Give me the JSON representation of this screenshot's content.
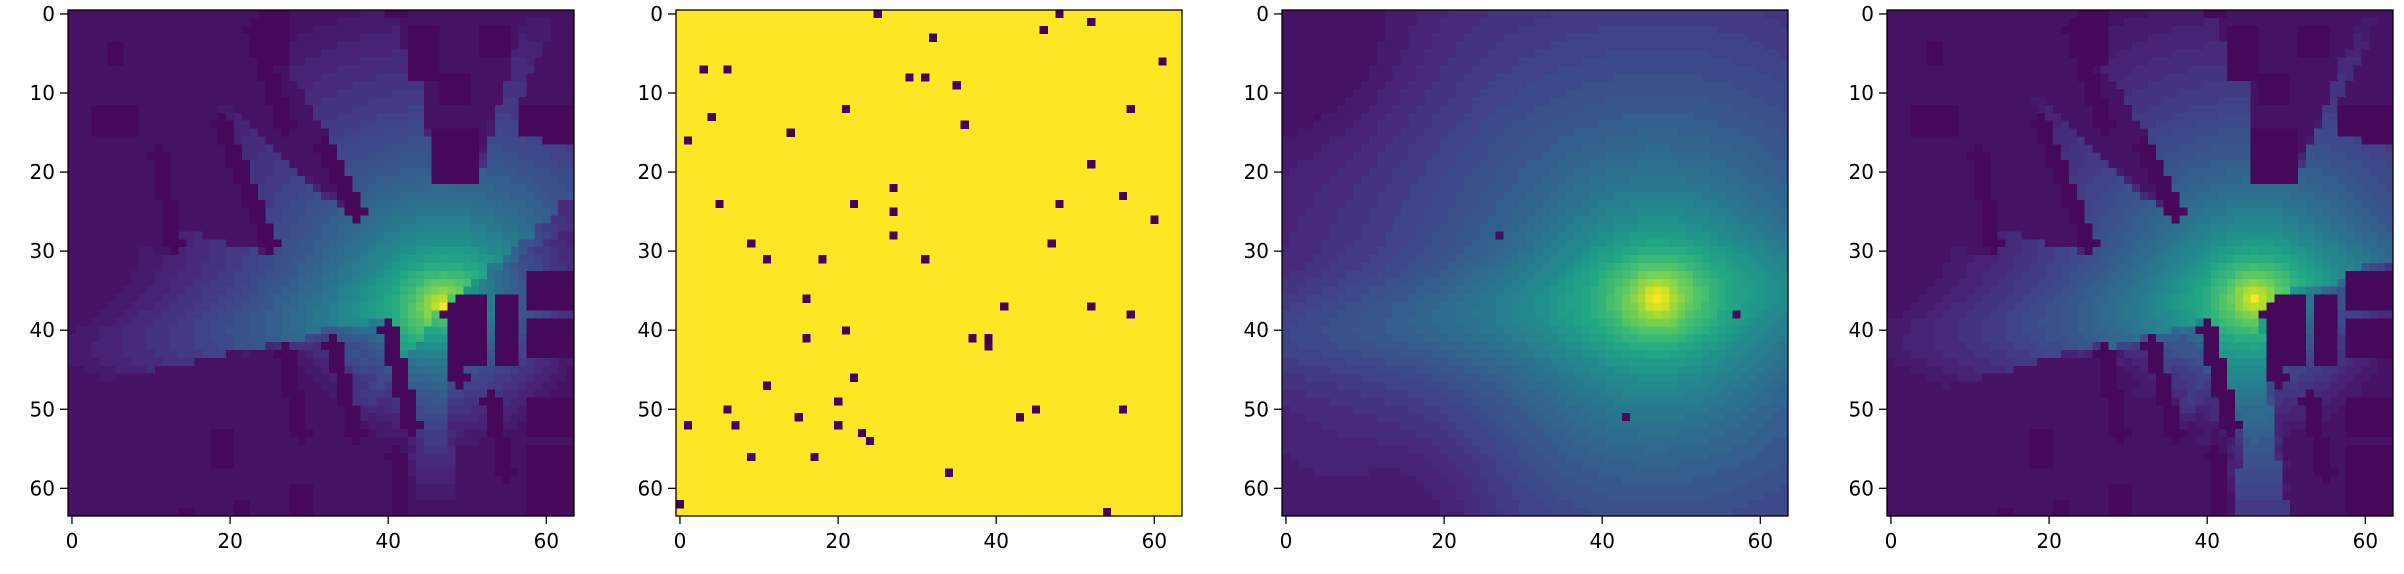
{
  "chart_data": [
    {
      "type": "heatmap",
      "panel": "signal-map",
      "title": "",
      "xlabel": "",
      "ylabel": "",
      "grid_size": 64,
      "xlim": [
        0,
        63
      ],
      "ylim": [
        63,
        0
      ],
      "x_ticks": [
        0,
        20,
        40,
        60
      ],
      "y_ticks": [
        0,
        10,
        20,
        30,
        40,
        50,
        60
      ],
      "x_tick_labels": [
        "0",
        "20",
        "40",
        "60"
      ],
      "y_tick_labels": [
        "0",
        "10",
        "20",
        "30",
        "40",
        "50",
        "60"
      ],
      "colormap": "viridis",
      "source_cell": [
        47,
        37
      ],
      "buildings": [
        {
          "x": [
            5,
            7
          ],
          "y": [
            4,
            7
          ]
        },
        {
          "x": [
            24,
            28
          ],
          "y": [
            0,
            7
          ]
        },
        {
          "x": [
            43,
            47
          ],
          "y": [
            2,
            9
          ]
        },
        {
          "x": [
            47,
            51
          ],
          "y": [
            8,
            12
          ]
        },
        {
          "x": [
            52,
            56
          ],
          "y": [
            2,
            6
          ]
        },
        {
          "x": [
            46,
            52
          ],
          "y": [
            15,
            22
          ]
        },
        {
          "x": [
            60,
            64
          ],
          "y": [
            12,
            17
          ]
        },
        {
          "x": [
            57,
            60
          ],
          "y": [
            12,
            16
          ]
        },
        {
          "x": [
            40,
            43
          ],
          "y": [
            0,
            1
          ]
        },
        {
          "x": [
            3,
            9
          ],
          "y": [
            12,
            16
          ]
        },
        {
          "x": [
            49,
            53
          ],
          "y": [
            36,
            45
          ]
        },
        {
          "x": [
            54,
            57
          ],
          "y": [
            36,
            45
          ]
        },
        {
          "x": [
            58,
            64
          ],
          "y": [
            33,
            38
          ]
        },
        {
          "x": [
            58,
            64
          ],
          "y": [
            39,
            44
          ]
        },
        {
          "x": [
            58,
            64
          ],
          "y": [
            49,
            54
          ]
        },
        {
          "x": [
            58,
            64
          ],
          "y": [
            55,
            60
          ]
        },
        {
          "x": [
            58,
            64
          ],
          "y": [
            60,
            64
          ]
        },
        {
          "x": [
            18,
            21
          ],
          "y": [
            53,
            58
          ]
        },
        {
          "x": [
            28,
            31
          ],
          "y": [
            60,
            64
          ]
        },
        {
          "x": [
            21,
            23
          ],
          "y": [
            62,
            64
          ]
        },
        {
          "x": [
            14,
            16
          ],
          "y": [
            63,
            64
          ]
        }
      ],
      "slabs": [
        {
          "p1": [
            23,
            2
          ],
          "p2": [
            27,
            14
          ]
        },
        {
          "p1": [
            19,
            14
          ],
          "p2": [
            25,
            29
          ]
        },
        {
          "p1": [
            32,
            17
          ],
          "p2": [
            36,
            25
          ]
        },
        {
          "p1": [
            11,
            18
          ],
          "p2": [
            13,
            29
          ]
        },
        {
          "p1": [
            27,
            43
          ],
          "p2": [
            29,
            53
          ]
        },
        {
          "p1": [
            33,
            42
          ],
          "p2": [
            36,
            53
          ]
        },
        {
          "p1": [
            40,
            40
          ],
          "p2": [
            43,
            52
          ]
        },
        {
          "p1": [
            48,
            38
          ],
          "p2": [
            49,
            46
          ]
        },
        {
          "p1": [
            53,
            49
          ],
          "p2": [
            55,
            58
          ]
        },
        {
          "p1": [
            41,
            56
          ],
          "p2": [
            42,
            64
          ]
        },
        {
          "p1": [
            29,
            61
          ],
          "p2": [
            30,
            64
          ]
        }
      ]
    },
    {
      "type": "heatmap",
      "panel": "sample-mask",
      "title": "",
      "xlabel": "",
      "ylabel": "",
      "grid_size": 64,
      "xlim": [
        0,
        63
      ],
      "ylim": [
        63,
        0
      ],
      "x_ticks": [
        0,
        20,
        40,
        60
      ],
      "y_ticks": [
        0,
        10,
        20,
        30,
        40,
        50,
        60
      ],
      "x_tick_labels": [
        "0",
        "20",
        "40",
        "60"
      ],
      "y_tick_labels": [
        "0",
        "10",
        "20",
        "30",
        "40",
        "50",
        "60"
      ],
      "colormap": "viridis",
      "background_value": 1,
      "sample_value": 0,
      "samples": [
        [
          25,
          0
        ],
        [
          32,
          3
        ],
        [
          48,
          0
        ],
        [
          46,
          2
        ],
        [
          52,
          1
        ],
        [
          61,
          6
        ],
        [
          3,
          7
        ],
        [
          6,
          7
        ],
        [
          29,
          8
        ],
        [
          31,
          8
        ],
        [
          35,
          9
        ],
        [
          4,
          13
        ],
        [
          21,
          12
        ],
        [
          57,
          12
        ],
        [
          36,
          14
        ],
        [
          14,
          15
        ],
        [
          1,
          16
        ],
        [
          52,
          19
        ],
        [
          27,
          22
        ],
        [
          56,
          23
        ],
        [
          5,
          24
        ],
        [
          22,
          24
        ],
        [
          48,
          24
        ],
        [
          27,
          25
        ],
        [
          60,
          26
        ],
        [
          27,
          28
        ],
        [
          9,
          29
        ],
        [
          47,
          29
        ],
        [
          11,
          31
        ],
        [
          18,
          31
        ],
        [
          31,
          31
        ],
        [
          16,
          36
        ],
        [
          41,
          37
        ],
        [
          52,
          37
        ],
        [
          57,
          38
        ],
        [
          21,
          40
        ],
        [
          16,
          41
        ],
        [
          37,
          41
        ],
        [
          39,
          41
        ],
        [
          39,
          42
        ],
        [
          22,
          46
        ],
        [
          11,
          47
        ],
        [
          20,
          49
        ],
        [
          6,
          50
        ],
        [
          45,
          50
        ],
        [
          56,
          50
        ],
        [
          15,
          51
        ],
        [
          43,
          51
        ],
        [
          1,
          52
        ],
        [
          7,
          52
        ],
        [
          20,
          52
        ],
        [
          23,
          53
        ],
        [
          24,
          54
        ],
        [
          9,
          56
        ],
        [
          17,
          56
        ],
        [
          34,
          58
        ],
        [
          0,
          62
        ],
        [
          54,
          63
        ]
      ]
    },
    {
      "type": "heatmap",
      "panel": "sample-prediction",
      "title": "",
      "xlabel": "",
      "ylabel": "",
      "grid_size": 64,
      "xlim": [
        0,
        63
      ],
      "ylim": [
        63,
        0
      ],
      "x_ticks": [
        0,
        20,
        40,
        60
      ],
      "y_ticks": [
        0,
        10,
        20,
        30,
        40,
        50,
        60
      ],
      "x_tick_labels": [
        "0",
        "20",
        "40",
        "60"
      ],
      "y_tick_labels": [
        "0",
        "10",
        "20",
        "30",
        "40",
        "50",
        "60"
      ],
      "colormap": "viridis",
      "source_cell": [
        47,
        36
      ],
      "dark_points": [
        [
          4,
          13
        ],
        [
          27,
          28
        ],
        [
          57,
          38
        ],
        [
          43,
          51
        ]
      ]
    },
    {
      "type": "heatmap",
      "panel": "reconstructed-map",
      "title": "",
      "xlabel": "",
      "ylabel": "",
      "grid_size": 64,
      "xlim": [
        0,
        63
      ],
      "ylim": [
        63,
        0
      ],
      "x_ticks": [
        0,
        20,
        40,
        60
      ],
      "y_ticks": [
        0,
        10,
        20,
        30,
        40,
        50,
        60
      ],
      "x_tick_labels": [
        "0",
        "20",
        "40",
        "60"
      ],
      "y_tick_labels": [
        "0",
        "10",
        "20",
        "30",
        "40",
        "50",
        "60"
      ],
      "colormap": "viridis",
      "source_cell": [
        46,
        36
      ],
      "same_as_panel": "signal-map"
    }
  ]
}
